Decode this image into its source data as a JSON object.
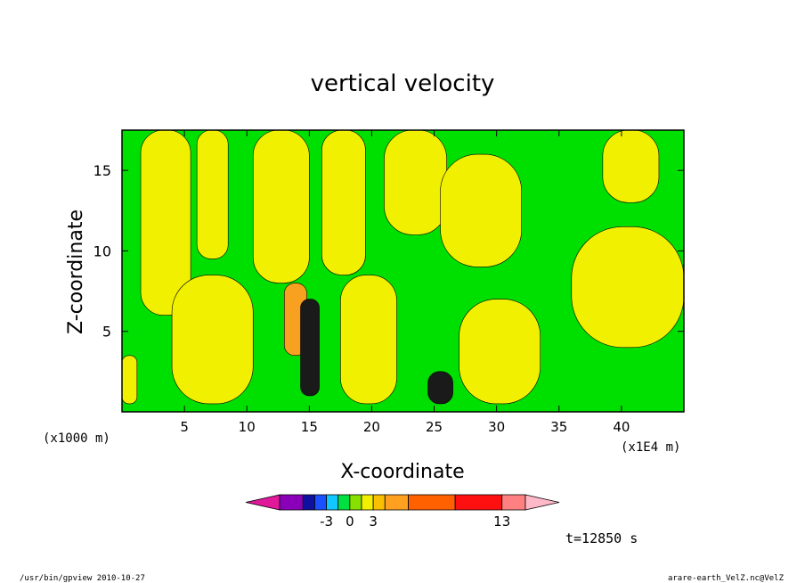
{
  "chart_data": {
    "type": "heatmap",
    "title": "vertical velocity",
    "xlabel": "X-coordinate",
    "ylabel": "Z-coordinate",
    "x_unit_note": "(x1000 m)",
    "x_scale_note": "(x1E4 m)",
    "xlim": [
      0,
      45
    ],
    "ylim": [
      0,
      17.5
    ],
    "x_ticks": [
      5,
      10,
      15,
      20,
      25,
      30,
      35,
      40
    ],
    "x_tick_labels": [
      "5",
      "10",
      "15",
      "20",
      "25",
      "30",
      "35",
      "40"
    ],
    "y_ticks": [
      5,
      10,
      15
    ],
    "y_tick_labels": [
      "5",
      "10",
      "15"
    ],
    "grid": false,
    "colorbar": {
      "colors": [
        "#e0189a",
        "#8a00b8",
        "#1010a0",
        "#1a50ff",
        "#10c8ff",
        "#00e040",
        "#88e000",
        "#f0f000",
        "#f8c000",
        "#ffa020",
        "#ff6000",
        "#ff1010",
        "#ff8080",
        "#ffb8c8"
      ],
      "labels": [
        "-3",
        "0",
        "3",
        "13"
      ]
    },
    "annotation": "t=12850 s",
    "footer_left": "/usr/bin/gpview   2010-10-27",
    "footer_right": "arare-earth_VelZ.nc@VelZ",
    "regions": [
      {
        "level": "yellow",
        "x": [
          0.0,
          1.2
        ],
        "y": [
          0.5,
          3.5
        ]
      },
      {
        "level": "yellow",
        "x": [
          1.5,
          5.5
        ],
        "y": [
          6.0,
          17.5
        ]
      },
      {
        "level": "yellow",
        "x": [
          4.0,
          10.5
        ],
        "y": [
          0.5,
          8.5
        ]
      },
      {
        "level": "yellow",
        "x": [
          6.0,
          8.5
        ],
        "y": [
          9.5,
          17.5
        ]
      },
      {
        "level": "yellow",
        "x": [
          10.5,
          15.0
        ],
        "y": [
          8.0,
          17.5
        ]
      },
      {
        "level": "yellow",
        "x": [
          16.0,
          19.5
        ],
        "y": [
          8.5,
          17.5
        ]
      },
      {
        "level": "yellow",
        "x": [
          17.5,
          22.0
        ],
        "y": [
          0.5,
          8.5
        ]
      },
      {
        "level": "yellow",
        "x": [
          21.0,
          26.0
        ],
        "y": [
          11.0,
          17.5
        ]
      },
      {
        "level": "yellow",
        "x": [
          25.5,
          32.0
        ],
        "y": [
          9.0,
          16.0
        ]
      },
      {
        "level": "yellow",
        "x": [
          27.0,
          33.5
        ],
        "y": [
          0.5,
          7.0
        ]
      },
      {
        "level": "yellow",
        "x": [
          36.0,
          45.0
        ],
        "y": [
          4.0,
          11.5
        ]
      },
      {
        "level": "yellow",
        "x": [
          38.5,
          43.0
        ],
        "y": [
          13.0,
          17.5
        ]
      },
      {
        "level": "orange",
        "x": [
          13.0,
          14.8
        ],
        "y": [
          3.5,
          8.0
        ]
      },
      {
        "level": "dark",
        "x": [
          14.3,
          15.8
        ],
        "y": [
          1.0,
          7.0
        ]
      },
      {
        "level": "dark",
        "x": [
          24.5,
          26.5
        ],
        "y": [
          0.5,
          2.5
        ]
      }
    ]
  }
}
